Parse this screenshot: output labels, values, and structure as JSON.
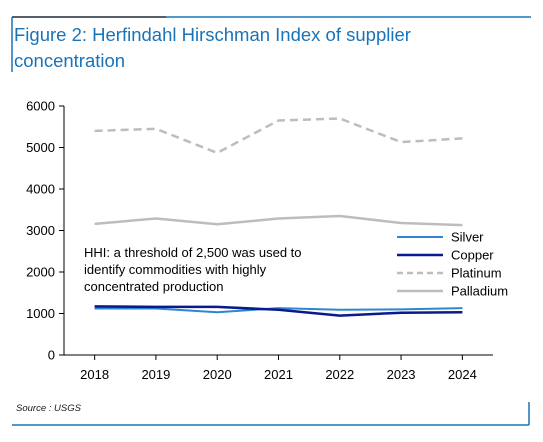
{
  "title": "Figure 2: Herfindahl Hirschman Index of supplier concentration",
  "source": "Source : USGS",
  "colors": {
    "frame": "#1a73b8",
    "title": "#1a73b8",
    "top_rule_dark": "#1f2a36"
  },
  "chart_data": {
    "type": "line",
    "x": [
      "2018",
      "2019",
      "2020",
      "2021",
      "2022",
      "2023",
      "2024"
    ],
    "yticks": [
      "0",
      "1000",
      "2000",
      "3000",
      "4000",
      "5000",
      "6000"
    ],
    "ylim": [
      0,
      6000
    ],
    "grid": false,
    "legend_position": "right",
    "annotation": [
      "HHI: a threshold of 2,500 was used to",
      "identify commodities with highly",
      "concentrated production"
    ],
    "series": [
      {
        "name": "Silver",
        "color": "#2e86d1",
        "dash": "solid",
        "width": 2,
        "values": [
          1120,
          1120,
          1030,
          1130,
          1090,
          1100,
          1130
        ]
      },
      {
        "name": "Copper",
        "color": "#0a1a8c",
        "dash": "solid",
        "width": 2.5,
        "values": [
          1170,
          1160,
          1160,
          1090,
          950,
          1020,
          1030
        ]
      },
      {
        "name": "Platinum",
        "color": "#bdbdbd",
        "dash": "dashed",
        "width": 2.5,
        "values": [
          5400,
          5450,
          4870,
          5650,
          5700,
          5130,
          5220
        ]
      },
      {
        "name": "Palladium",
        "color": "#bdbdbd",
        "dash": "solid",
        "width": 2.5,
        "values": [
          3160,
          3290,
          3150,
          3290,
          3350,
          3180,
          3130
        ]
      }
    ]
  }
}
